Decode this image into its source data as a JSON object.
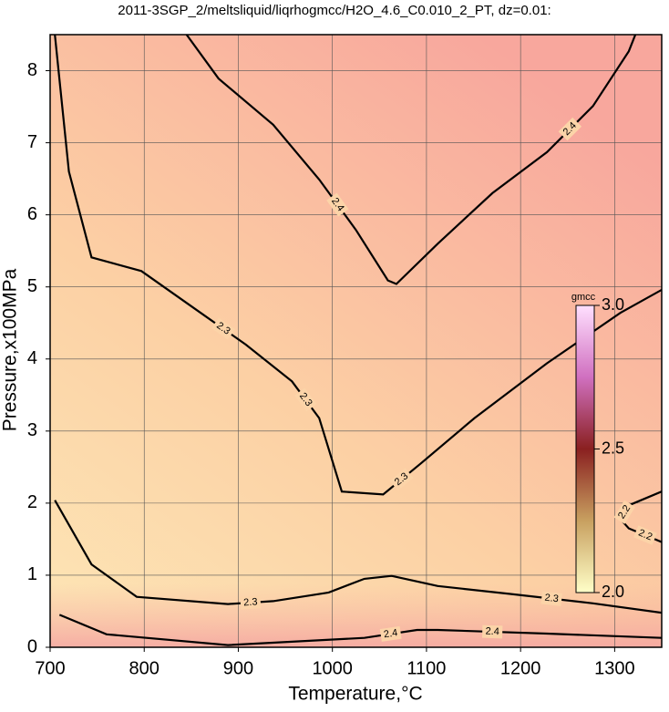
{
  "chart_data": {
    "type": "contour",
    "title": "2011-3SGP_2/meltsliquid/liqrhogmcc/H2O_4.6_C0.010_2_PT, dz=0.01:",
    "x_label": "Temperature,°C",
    "y_label": "Pressure,x100MPa",
    "xlim": [
      700,
      1350
    ],
    "ylim": [
      0,
      8.5
    ],
    "xticks": [
      700,
      800,
      900,
      1000,
      1100,
      1200,
      1300
    ],
    "yticks": [
      0,
      1,
      2,
      3,
      4,
      5,
      6,
      7,
      8
    ],
    "grid": true,
    "contours": [
      {
        "level": 2.4,
        "x": [
          845,
          879,
          937,
          986,
          1025,
          1059,
          1068,
          1112,
          1170,
          1228,
          1277,
          1315,
          1322
        ],
        "y": [
          8.5,
          7.89,
          7.25,
          6.49,
          5.79,
          5.09,
          5.04,
          5.6,
          6.3,
          6.87,
          7.51,
          8.27,
          8.5
        ]
      },
      {
        "level": 2.3,
        "x": [
          705,
          720,
          744,
          797,
          860,
          908,
          957,
          986,
          1010,
          1054,
          1093,
          1151,
          1228,
          1306,
          1350
        ],
        "y": [
          8.5,
          6.6,
          5.41,
          5.22,
          4.64,
          4.2,
          3.69,
          3.18,
          2.16,
          2.12,
          2.54,
          3.18,
          3.94,
          4.64,
          4.96
        ]
      },
      {
        "level": 2.3,
        "x": [
          705,
          744,
          792,
          889,
          937,
          996,
          1034,
          1063,
          1112,
          1189,
          1277,
          1350
        ],
        "y": [
          2.04,
          1.15,
          0.7,
          0.6,
          0.64,
          0.76,
          0.95,
          0.99,
          0.85,
          0.74,
          0.61,
          0.48
        ]
      },
      {
        "level": 2.4,
        "x": [
          710,
          760,
          889,
          1034,
          1090,
          1112,
          1228,
          1350
        ],
        "y": [
          0.45,
          0.18,
          0.03,
          0.13,
          0.24,
          0.24,
          0.19,
          0.13
        ]
      },
      {
        "level": 2.2,
        "x": [
          1350,
          1315,
          1306,
          1315,
          1350
        ],
        "y": [
          2.16,
          1.97,
          1.78,
          1.65,
          1.46
        ]
      }
    ],
    "colorbar": {
      "label": "gmcc",
      "lim": [
        2.0,
        3.0
      ],
      "ticks": [
        {
          "value": 2.0,
          "label": "2.0"
        },
        2.5,
        {
          "value": 3.0,
          "label": "3.0"
        }
      ]
    }
  }
}
